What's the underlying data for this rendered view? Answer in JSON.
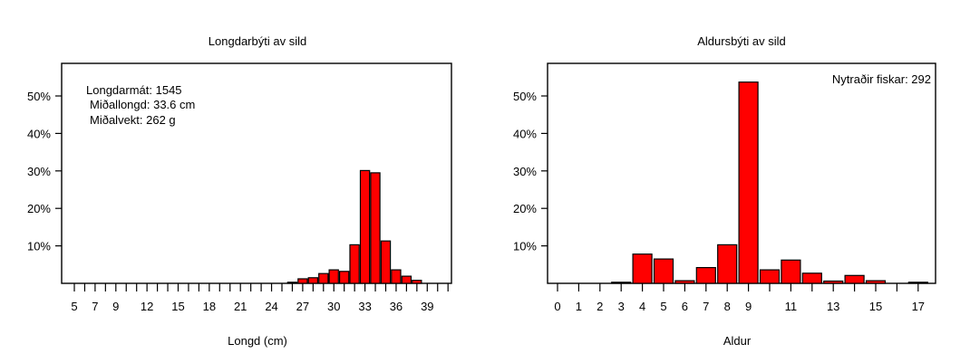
{
  "chart_data": [
    {
      "type": "bar",
      "title": "Longdarbýti av sild",
      "xlabel": "Longd (cm)",
      "ylabel": "",
      "x": [
        26,
        27,
        28,
        29,
        30,
        31,
        32,
        33,
        34,
        35,
        36,
        37,
        38
      ],
      "values": [
        0.3,
        1.2,
        1.5,
        2.6,
        3.6,
        3.2,
        10.3,
        30.1,
        29.5,
        11.3,
        3.6,
        1.9,
        0.8
      ],
      "xlim": [
        5,
        40
      ],
      "ylim": [
        0,
        57
      ],
      "y_ticks": [
        10,
        20,
        30,
        40,
        50
      ],
      "y_tick_labels": [
        "10%",
        "20%",
        "30%",
        "40%",
        "50%"
      ],
      "x_tick_labels": [
        "5",
        "7",
        "9",
        "12",
        "15",
        "18",
        "21",
        "24",
        "27",
        "30",
        "33",
        "36",
        "39"
      ],
      "annotations": [
        "Longdarmát: 1545",
        "Miðallongd: 33.6 cm",
        "Miðalvekt: 262 g"
      ],
      "grid": false
    },
    {
      "type": "bar",
      "title": "Aldursbýti av sild",
      "xlabel": "Aldur",
      "ylabel": "",
      "x": [
        3,
        4,
        5,
        6,
        7,
        8,
        9,
        10,
        11,
        12,
        13,
        14,
        15,
        17
      ],
      "values": [
        0.3,
        7.8,
        6.5,
        0.7,
        4.2,
        10.3,
        53.7,
        3.6,
        6.2,
        2.7,
        0.6,
        2.1,
        0.7,
        0.3
      ],
      "xlim": [
        0,
        17
      ],
      "ylim": [
        0,
        57
      ],
      "y_ticks": [
        10,
        20,
        30,
        40,
        50
      ],
      "y_tick_labels": [
        "10%",
        "20%",
        "30%",
        "40%",
        "50%"
      ],
      "x_tick_labels": [
        "0",
        "1",
        "2",
        "3",
        "4",
        "5",
        "6",
        "7",
        "8",
        "9",
        "11",
        "13",
        "15",
        "17"
      ],
      "annotations": [
        "Nytraðir fiskar: 292"
      ],
      "grid": false
    }
  ],
  "colors": {
    "bar_fill": "#ff0000",
    "bar_stroke": "#000000"
  }
}
